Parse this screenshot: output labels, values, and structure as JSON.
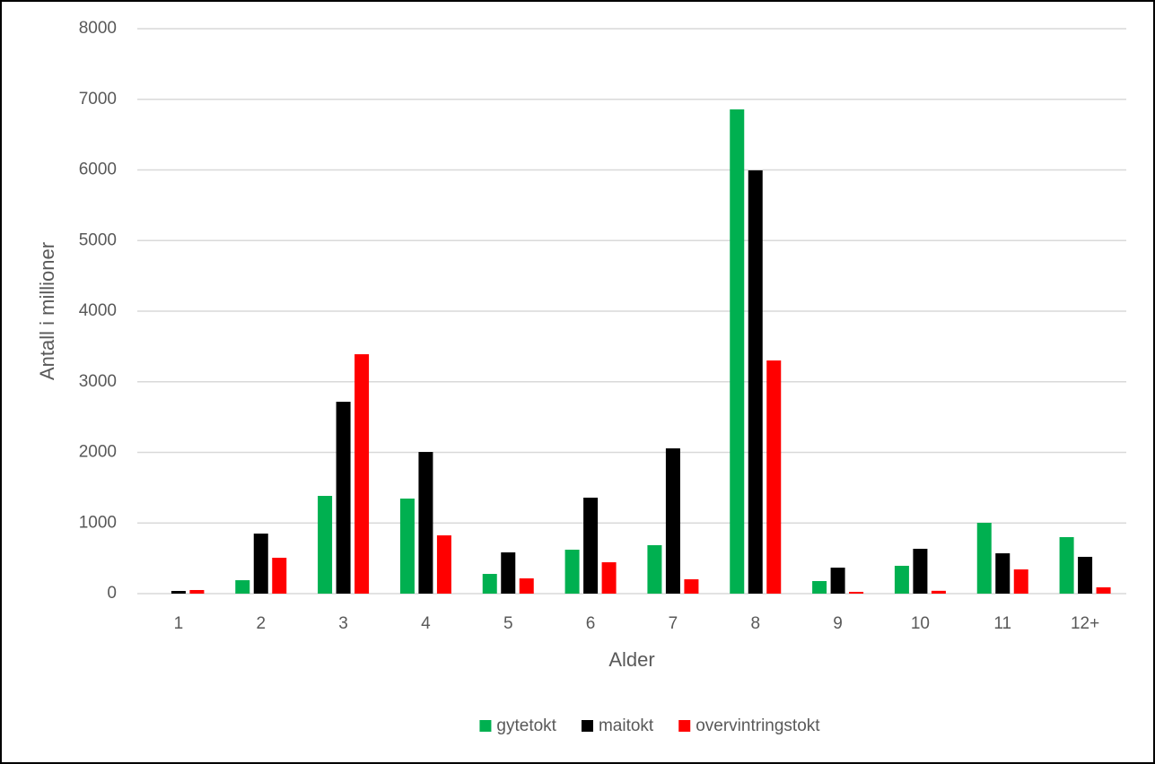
{
  "chart_data": {
    "type": "bar",
    "categories": [
      "1",
      "2",
      "3",
      "4",
      "5",
      "6",
      "7",
      "8",
      "9",
      "10",
      "11",
      "12+"
    ],
    "series": [
      {
        "name": "gytetokt",
        "color": "#00b050",
        "values": [
          0,
          190,
          1384,
          1346,
          279,
          622,
          686,
          6857,
          178,
          394,
          1003,
          800
        ]
      },
      {
        "name": "maitokt",
        "color": "#000000",
        "values": [
          38,
          850,
          2717,
          2006,
          584,
          1359,
          2057,
          5994,
          368,
          635,
          571,
          521
        ]
      },
      {
        "name": "overvintringstokt",
        "color": "#ff0000",
        "values": [
          51,
          508,
          3390,
          825,
          216,
          444,
          203,
          3302,
          25,
          40,
          343,
          89
        ]
      }
    ],
    "x_label": "Alder",
    "y_label": "Antall i millioner",
    "ylim": [
      0,
      8000
    ],
    "yticks": [
      0,
      1000,
      2000,
      3000,
      4000,
      5000,
      6000,
      7000,
      8000
    ],
    "grid": true,
    "legend": "bottom"
  }
}
